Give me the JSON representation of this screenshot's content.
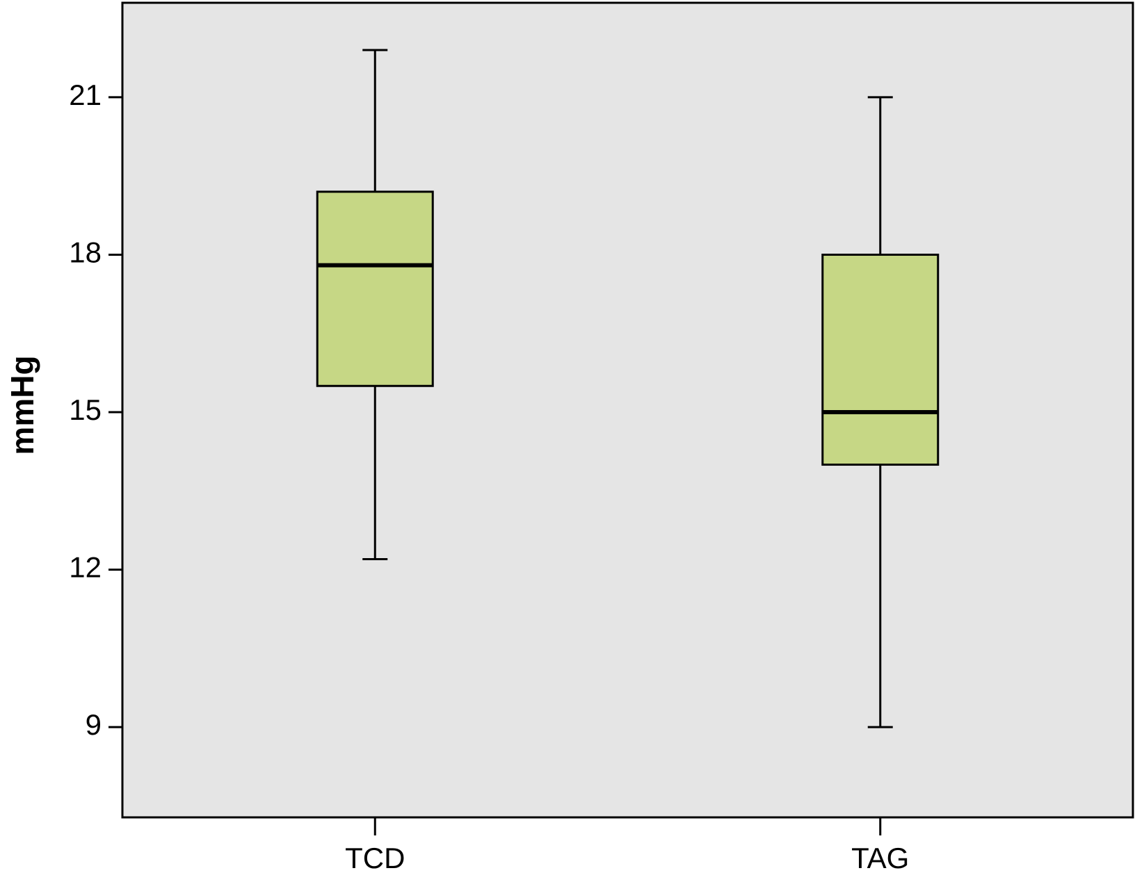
{
  "chart_data": {
    "type": "box",
    "ylabel": "mmHg",
    "categories": [
      "TCD",
      "TAG"
    ],
    "boxes": [
      {
        "min": 12.2,
        "q1": 15.5,
        "median": 17.8,
        "q3": 19.2,
        "max": 21.9
      },
      {
        "min": 9,
        "q1": 14,
        "median": 15,
        "q3": 18,
        "max": 21
      }
    ],
    "color": "#c6d785",
    "background": "#e5e5e5",
    "ylim": [
      7.28,
      22.8
    ],
    "yticks": [
      9,
      12,
      15,
      18,
      21
    ]
  }
}
